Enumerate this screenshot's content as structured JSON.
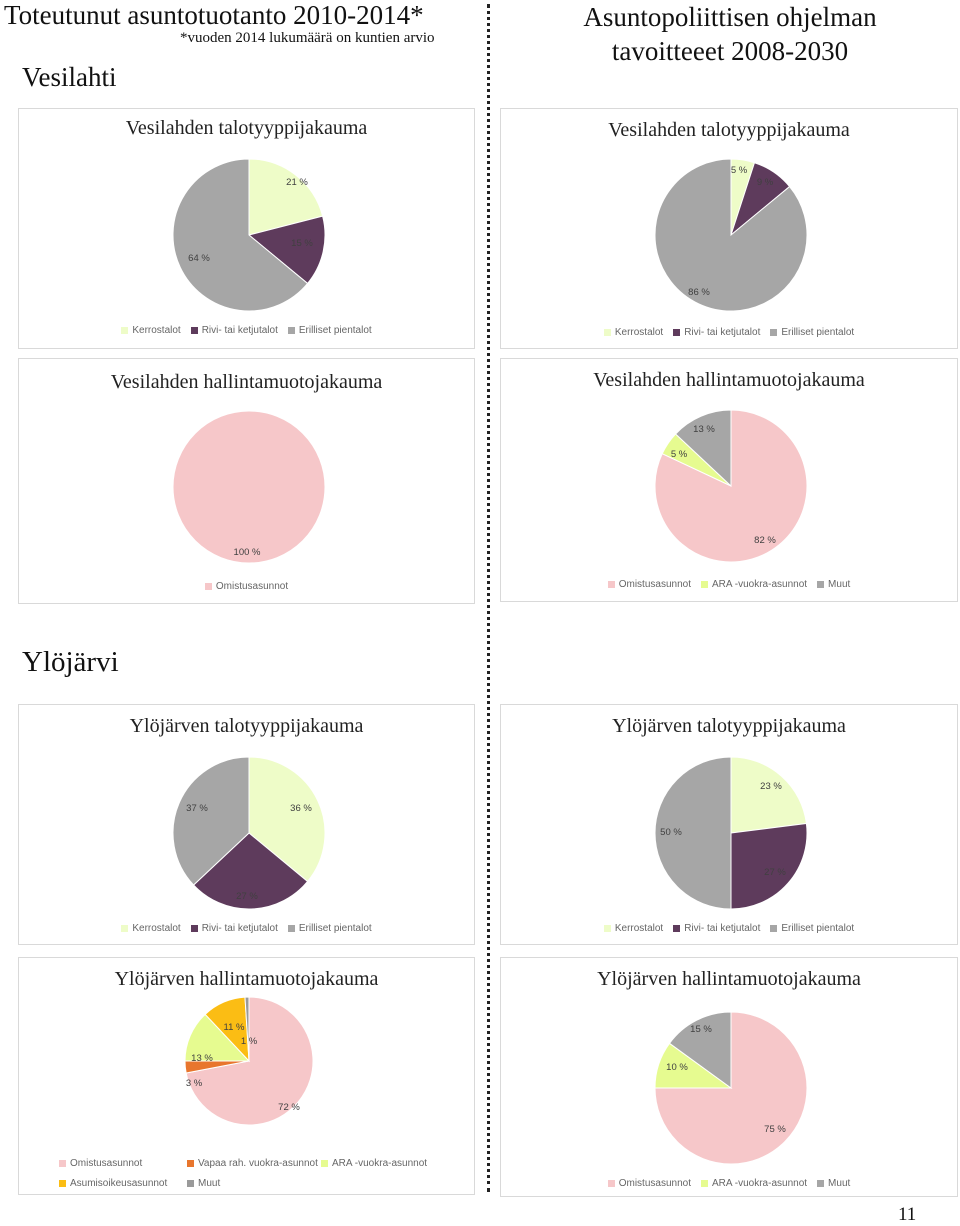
{
  "header": {
    "left_title": "Toteutunut asuntotuotanto 2010-2014*",
    "left_note": "*vuoden 2014 lukumäärä on kuntien arvio",
    "right_title_line1": "Asuntopoliittisen ohjelman",
    "right_title_line2": "tavoitteeet 2008-2030"
  },
  "sections": {
    "vesilahti": "Vesilahti",
    "ylojarvi": "Ylöjärvi"
  },
  "page_number": "11",
  "colors": {
    "kerrostalot": "#eefcc8",
    "rivi": "#5e3b5c",
    "erilliset": "#a6a6a6",
    "omistus": "#f6c7c9",
    "ara": "#e6fb90",
    "muut": "#a6a6a6",
    "vapaa": "#e8762d",
    "asumisoikeus": "#fbbd14",
    "muut_small": "#9a9a9a"
  },
  "chart_data": [
    {
      "id": "c1",
      "type": "pie",
      "title": "Vesilahden talotyyppijakauma",
      "categories": [
        "Kerrostalot",
        "Rivi- tai ketjutalot",
        "Erilliset pientalot"
      ],
      "values": [
        21,
        15,
        64
      ],
      "labels": [
        "21 %",
        "15 %",
        "64 %"
      ],
      "colors": [
        "#eefcc8",
        "#5e3b5c",
        "#a6a6a6"
      ],
      "legend": [
        "Kerrostalot",
        "Rivi- tai ketjutalot",
        "Erilliset pientalot"
      ]
    },
    {
      "id": "c2",
      "type": "pie",
      "title": "Vesilahden talotyyppijakauma",
      "categories": [
        "Kerrostalot",
        "Rivi- tai ketjutalot",
        "Erilliset pientalot"
      ],
      "values": [
        5,
        9,
        86
      ],
      "labels": [
        "5 %",
        "9 %",
        "86 %"
      ],
      "colors": [
        "#eefcc8",
        "#5e3b5c",
        "#a6a6a6"
      ],
      "legend": [
        "Kerrostalot",
        "Rivi- tai ketjutalot",
        "Erilliset pientalot"
      ]
    },
    {
      "id": "c3",
      "type": "pie",
      "title": "Vesilahden hallintamuotojakauma",
      "categories": [
        "Omistusasunnot"
      ],
      "values": [
        100
      ],
      "labels": [
        "100 %"
      ],
      "colors": [
        "#f6c7c9"
      ],
      "legend": [
        "Omistusasunnot"
      ]
    },
    {
      "id": "c4",
      "type": "pie",
      "title": "Vesilahden hallintamuotojakauma",
      "categories": [
        "Omistusasunnot",
        "ARA -vuokra-asunnot",
        "Muut"
      ],
      "values": [
        82,
        5,
        13
      ],
      "labels": [
        "82 %",
        "5 %",
        "13 %"
      ],
      "colors": [
        "#f6c7c9",
        "#e6fb90",
        "#a6a6a6"
      ],
      "legend": [
        "Omistusasunnot",
        "ARA -vuokra-asunnot",
        "Muut"
      ]
    },
    {
      "id": "c5",
      "type": "pie",
      "title": "Ylöjärven talotyyppijakauma",
      "categories": [
        "Kerrostalot",
        "Rivi- tai ketjutalot",
        "Erilliset pientalot"
      ],
      "values": [
        36,
        27,
        37
      ],
      "labels": [
        "36 %",
        "27 %",
        "37 %"
      ],
      "colors": [
        "#eefcc8",
        "#5e3b5c",
        "#a6a6a6"
      ],
      "legend": [
        "Kerrostalot",
        "Rivi- tai ketjutalot",
        "Erilliset pientalot"
      ]
    },
    {
      "id": "c6",
      "type": "pie",
      "title": "Ylöjärven talotyyppijakauma",
      "categories": [
        "Kerrostalot",
        "Rivi- tai ketjutalot",
        "Erilliset pientalot"
      ],
      "values": [
        23,
        27,
        50
      ],
      "labels": [
        "23 %",
        "27 %",
        "50 %"
      ],
      "colors": [
        "#eefcc8",
        "#5e3b5c",
        "#a6a6a6"
      ],
      "legend": [
        "Kerrostalot",
        "Rivi- tai ketjutalot",
        "Erilliset pientalot"
      ]
    },
    {
      "id": "c7",
      "type": "pie",
      "title": "Ylöjärven hallintamuotojakauma",
      "categories": [
        "Omistusasunnot",
        "Vapaa rah. vuokra-asunnot",
        "ARA -vuokra-asunnot",
        "Asumisoikeusasunnot",
        "Muut"
      ],
      "values": [
        72,
        3,
        13,
        11,
        1
      ],
      "labels": [
        "72 %",
        "3 %",
        "13 %",
        "11 %",
        "1 %"
      ],
      "colors": [
        "#f6c7c9",
        "#e8762d",
        "#e6fb90",
        "#fbbd14",
        "#9a9a9a"
      ],
      "legend": [
        "Omistusasunnot",
        "Vapaa rah. vuokra-asunnot",
        "ARA -vuokra-asunnot",
        "Asumisoikeusasunnot",
        "Muut"
      ]
    },
    {
      "id": "c8",
      "type": "pie",
      "title": "Ylöjärven hallintamuotojakauma",
      "categories": [
        "Omistusasunnot",
        "ARA -vuokra-asunnot",
        "Muut"
      ],
      "values": [
        75,
        10,
        15
      ],
      "labels": [
        "75 %",
        "10 %",
        "15 %"
      ],
      "colors": [
        "#f6c7c9",
        "#e6fb90",
        "#a6a6a6"
      ],
      "legend": [
        "Omistusasunnot",
        "ARA -vuokra-asunnot",
        "Muut"
      ]
    }
  ]
}
